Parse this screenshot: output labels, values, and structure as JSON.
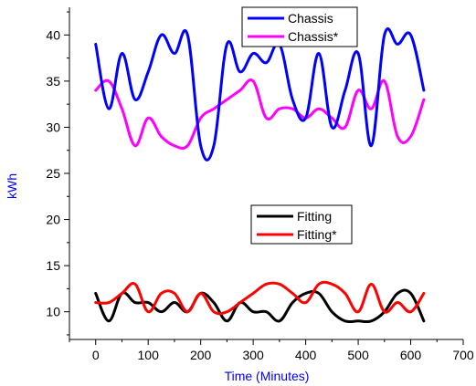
{
  "chart_data": {
    "type": "line",
    "xlabel": "Time (Minutes)",
    "ylabel": "kWh",
    "label_color": "#0000ff",
    "xlim": [
      -50,
      700
    ],
    "ylim": [
      7,
      43
    ],
    "xticks": [
      0,
      100,
      200,
      300,
      400,
      500,
      600,
      700
    ],
    "yticks": [
      10,
      15,
      20,
      25,
      30,
      35,
      40
    ],
    "xtick_labels": [
      "0",
      "100",
      "200",
      "300",
      "400",
      "500",
      "600",
      "700"
    ],
    "ytick_labels": [
      "10",
      "15",
      "20",
      "25",
      "30",
      "35",
      "40"
    ],
    "grid": false,
    "x": [
      0,
      25,
      50,
      75,
      100,
      125,
      150,
      175,
      200,
      225,
      250,
      275,
      300,
      325,
      350,
      375,
      400,
      425,
      450,
      475,
      500,
      525,
      550,
      575,
      600,
      625
    ],
    "series": [
      {
        "name": "Chassis",
        "color": "#0000ff",
        "values": [
          39,
          32,
          38,
          33,
          36,
          40,
          38,
          40,
          28,
          28,
          39,
          36,
          38,
          37,
          39,
          33,
          31,
          38,
          30,
          34,
          38,
          28,
          40,
          39,
          40,
          34
        ]
      },
      {
        "name": "Chassis*",
        "color": "#ff00ff",
        "values": [
          34,
          35,
          32,
          28,
          31,
          29,
          28,
          28,
          31,
          32,
          33,
          34,
          35,
          31,
          32,
          32,
          31,
          32,
          31,
          30,
          34,
          32,
          35,
          29,
          29,
          33
        ]
      },
      {
        "name": "Fitting",
        "color": "#000000",
        "values": [
          12,
          9,
          12,
          11,
          11,
          10,
          11,
          10,
          12,
          11,
          9,
          11,
          10,
          10,
          9,
          11,
          12,
          12,
          10,
          9,
          9,
          9,
          10,
          12,
          12,
          9
        ]
      },
      {
        "name": "Fitting*",
        "color": "#ff0000",
        "values": [
          11,
          11,
          12,
          13,
          10,
          12,
          12,
          10,
          12,
          10,
          10,
          11,
          12,
          13,
          13,
          12,
          11,
          13,
          13,
          12,
          10,
          13,
          10,
          11,
          10,
          12
        ]
      }
    ],
    "legends": [
      {
        "position": "top",
        "entries": [
          "Chassis",
          "Chassis*"
        ]
      },
      {
        "position": "middle",
        "entries": [
          "Fitting",
          "Fitting*"
        ]
      }
    ]
  }
}
